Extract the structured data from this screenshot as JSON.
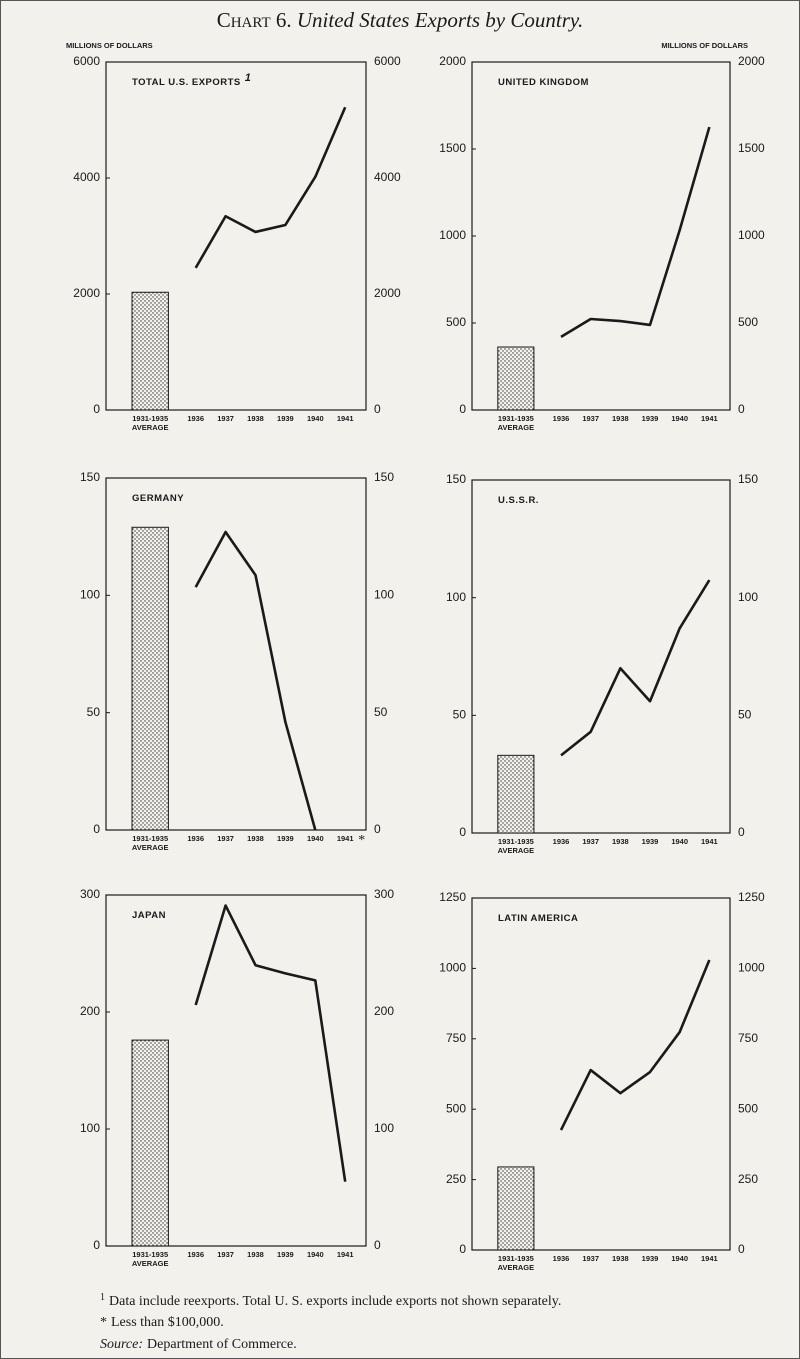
{
  "chart_data": [
    {
      "type": "combo",
      "title": "TOTAL U.S. EXPORTS",
      "title_note": "1",
      "ylabel": "MILLIONS OF DOLLARS",
      "bar": {
        "categories": [
          "1931-1935"
        ],
        "category_note": "AVERAGE",
        "values": [
          2030
        ]
      },
      "line": {
        "categories": [
          "1936",
          "1937",
          "1938",
          "1939",
          "1940",
          "1941"
        ],
        "values": [
          2450,
          3340,
          3070,
          3190,
          4020,
          5220
        ]
      },
      "color": "#1a1a1a",
      "ylim": [
        0,
        6000
      ],
      "yticks": [
        0,
        2000,
        4000,
        6000
      ]
    },
    {
      "type": "combo",
      "title": "UNITED KINGDOM",
      "ylabel": "MILLIONS OF DOLLARS",
      "bar": {
        "categories": [
          "1931-1935"
        ],
        "category_note": "AVERAGE",
        "values": [
          362
        ]
      },
      "line": {
        "categories": [
          "1936",
          "1937",
          "1938",
          "1939",
          "1940",
          "1941"
        ],
        "values": [
          420,
          523,
          511,
          489,
          1034,
          1626
        ]
      },
      "color": "#1a1a1a",
      "ylim": [
        0,
        2000
      ],
      "yticks": [
        0,
        500,
        1000,
        1500,
        2000
      ]
    },
    {
      "type": "combo",
      "title": "GERMANY",
      "bar": {
        "categories": [
          "1931-1935"
        ],
        "category_note": "AVERAGE",
        "values": [
          129
        ]
      },
      "line": {
        "categories": [
          "1936",
          "1937",
          "1938",
          "1939",
          "1940",
          "1941"
        ],
        "values": [
          103.5,
          127,
          108.6,
          46,
          0,
          null
        ],
        "notes": [
          null,
          null,
          null,
          null,
          null,
          "*"
        ]
      },
      "color": "#1a1a1a",
      "ylim": [
        0,
        150
      ],
      "yticks": [
        0,
        50,
        100,
        150
      ]
    },
    {
      "type": "combo",
      "title": "U.S.S.R.",
      "bar": {
        "categories": [
          "1931-1935"
        ],
        "category_note": "AVERAGE",
        "values": [
          33
        ]
      },
      "line": {
        "categories": [
          "1936",
          "1937",
          "1938",
          "1939",
          "1940",
          "1941"
        ],
        "values": [
          33,
          43,
          70,
          56,
          87,
          107.5
        ]
      },
      "color": "#1a1a1a",
      "ylim": [
        0,
        150
      ],
      "yticks": [
        0,
        50,
        100,
        150
      ]
    },
    {
      "type": "combo",
      "title": "JAPAN",
      "bar": {
        "categories": [
          "1931-1935"
        ],
        "category_note": "AVERAGE",
        "values": [
          176
        ]
      },
      "line": {
        "categories": [
          "1936",
          "1937",
          "1938",
          "1939",
          "1940",
          "1941"
        ],
        "values": [
          206,
          291,
          240,
          233,
          227,
          55
        ]
      },
      "color": "#1a1a1a",
      "ylim": [
        0,
        300
      ],
      "yticks": [
        0,
        100,
        200,
        300
      ]
    },
    {
      "type": "combo",
      "title": "LATIN AMERICA",
      "bar": {
        "categories": [
          "1931-1935"
        ],
        "category_note": "AVERAGE",
        "values": [
          295
        ]
      },
      "line": {
        "categories": [
          "1936",
          "1937",
          "1938",
          "1939",
          "1940",
          "1941"
        ],
        "values": [
          426,
          639,
          557,
          632,
          774,
          1030
        ]
      },
      "color": "#1a1a1a",
      "ylim": [
        0,
        1250
      ],
      "yticks": [
        0,
        250,
        500,
        750,
        1000,
        1250
      ]
    }
  ],
  "page": {
    "title_prefix": "Chart 6.",
    "title": "United States Exports by Country.",
    "footnotes": [
      "Data include reexports.   Total U. S. exports include exports not shown separately.",
      "Less than $100,000."
    ],
    "footnote_marks": [
      "1",
      "*"
    ],
    "source_label": "Source:",
    "source": "Department of Commerce."
  }
}
